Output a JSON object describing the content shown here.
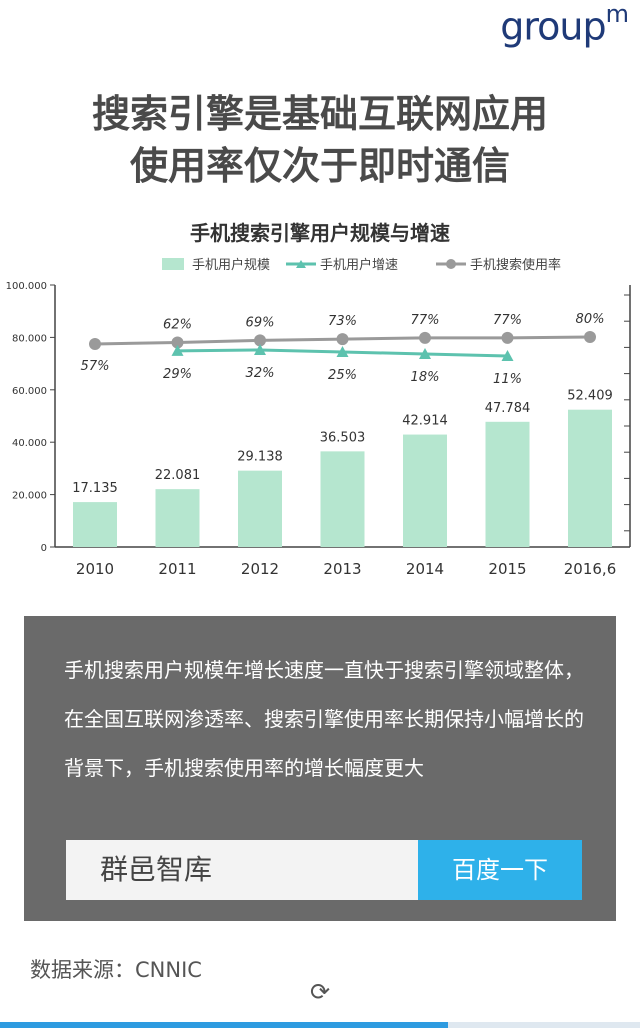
{
  "logo": {
    "text": "group",
    "sup": "m"
  },
  "headline": {
    "line1": "搜索引擎是基础互联网应用",
    "line2": "使用率仅次于即时通信"
  },
  "chart_data": {
    "type": "bar",
    "title": "手机搜索引擎用户规模与增速",
    "categories": [
      "2010",
      "2011",
      "2012",
      "2013",
      "2014",
      "2015",
      "2016,6"
    ],
    "ylim": [
      0,
      100
    ],
    "yticks": [
      "0",
      "20.000",
      "40.000",
      "60.000",
      "80.000",
      "100.000"
    ],
    "grid": false,
    "legend_position": "top",
    "series": [
      {
        "name": "手机用户规模",
        "type": "bar",
        "color": "#b5e6cf",
        "values": [
          17.135,
          22.081,
          29.138,
          36.503,
          42.914,
          47.784,
          52.409
        ],
        "labels": [
          "17.135",
          "22.081",
          "29.138",
          "36.503",
          "42.914",
          "47.784",
          "52.409"
        ]
      },
      {
        "name": "手机用户增速",
        "type": "line",
        "color": "#5dc2ae",
        "values": [
          null,
          29,
          32,
          25,
          18,
          11,
          null
        ],
        "labels": [
          "",
          "29%",
          "32%",
          "25%",
          "18%",
          "11%",
          ""
        ]
      },
      {
        "name": "手机搜索使用率",
        "type": "line",
        "color": "#9a9a9a",
        "values": [
          57,
          62,
          69,
          73,
          77,
          77,
          80
        ],
        "labels": [
          "57%",
          "62%",
          "69%",
          "73%",
          "77%",
          "77%",
          "80%"
        ]
      }
    ]
  },
  "panel": {
    "text": "手机搜索用户规模年增长速度一直快于搜索引擎领域整体，在全国互联网渗透率、搜索引擎使用率长期保持小幅增长的背景下，手机搜索使用率的增长幅度更大",
    "search_value": "群邑智库",
    "search_button": "百度一下"
  },
  "source": "数据来源：CNNIC",
  "loading_icon": "loading-icon",
  "progress_value": 0.7
}
